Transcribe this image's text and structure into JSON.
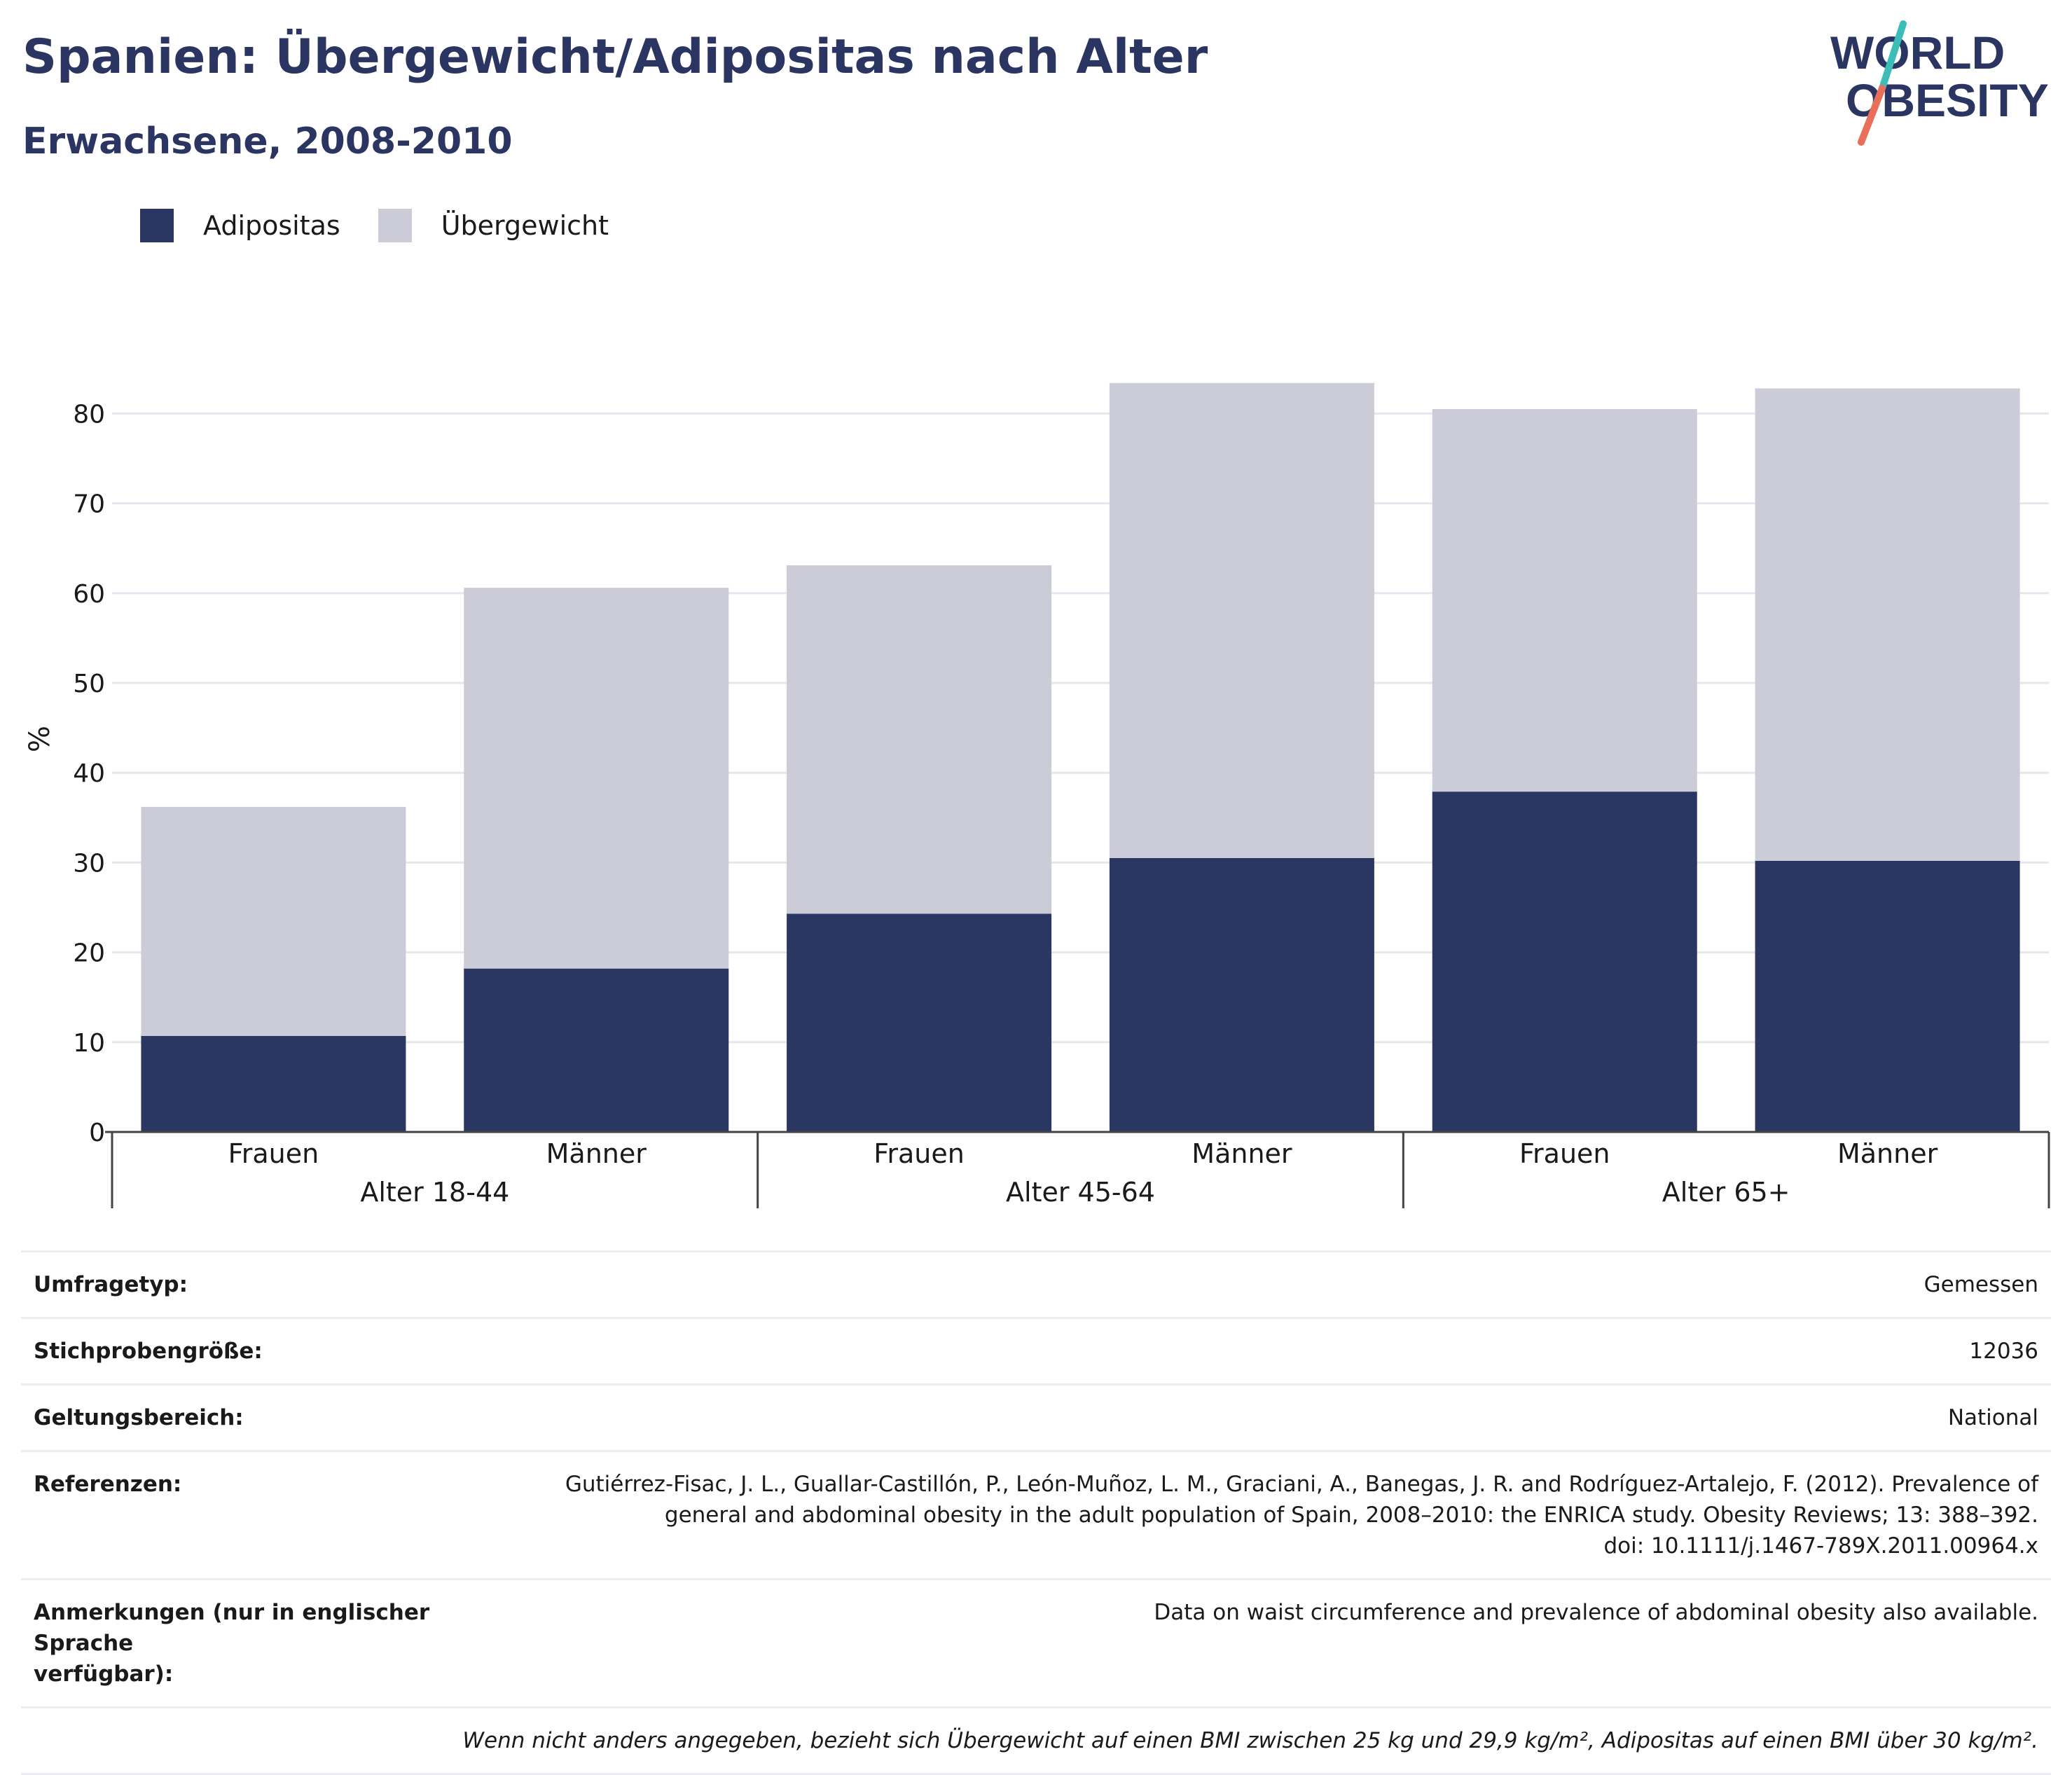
{
  "header": {
    "title": "Spanien: Übergewicht/Adipositas nach Alter",
    "subtitle": "Erwachsene, 2008-2010"
  },
  "logo": {
    "line1": "WORLD",
    "line2": "OBESITY"
  },
  "legend": {
    "obesity_label": "Adipositas",
    "overweight_label": "Übergewicht"
  },
  "colors": {
    "obesity": "#2b3763",
    "overweight": "#cbccd8",
    "title": "#2b3562",
    "logo_teal": "#3dbdb8",
    "logo_coral": "#e8705a"
  },
  "chart_data": {
    "type": "bar",
    "stacked": true,
    "ylabel": "%",
    "ylim": [
      0,
      80
    ],
    "yticks": [
      0,
      10,
      20,
      30,
      40,
      50,
      60,
      70,
      80
    ],
    "grid": true,
    "legend_position": "top-left",
    "categories": [
      "Frauen",
      "Männer",
      "Frauen",
      "Männer",
      "Frauen",
      "Männer"
    ],
    "groups": [
      {
        "label": "Alter 18-44",
        "categories": [
          0,
          1
        ]
      },
      {
        "label": "Alter 45-64",
        "categories": [
          2,
          3
        ]
      },
      {
        "label": "Alter 65+",
        "categories": [
          4,
          5
        ]
      }
    ],
    "series": [
      {
        "name": "Adipositas",
        "values": [
          10.7,
          18.2,
          24.3,
          30.5,
          37.9,
          30.2
        ]
      },
      {
        "name": "Übergewicht",
        "values": [
          25.5,
          42.4,
          38.8,
          52.9,
          42.6,
          52.6
        ]
      }
    ],
    "totals": [
      36.2,
      60.6,
      63.1,
      83.4,
      80.5,
      82.8
    ]
  },
  "meta": {
    "rows": [
      {
        "key": "Umfragetyp:",
        "value": "Gemessen"
      },
      {
        "key": "Stichprobengröße:",
        "value": "12036"
      },
      {
        "key": "Geltungsbereich:",
        "value": "National"
      },
      {
        "key": "Referenzen:",
        "value_lines": [
          "Gutiérrez-Fisac, J. L., Guallar-Castillón, P., León-Muñoz, L. M., Graciani, A., Banegas, J. R. and Rodríguez-Artalejo, F. (2012). Prevalence of",
          "general and abdominal obesity in the adult population of Spain, 2008–2010: the ENRICA study. Obesity Reviews; 13: 388–392.",
          "doi: 10.1111/j.1467-789X.2011.00964.x"
        ]
      },
      {
        "key_lines": [
          "Anmerkungen (nur in englischer Sprache",
          "verfügbar):"
        ],
        "value": "Data on waist circumference and prevalence of abdominal obesity also available."
      }
    ],
    "footnote": "Wenn nicht anders angegeben, bezieht sich Übergewicht auf einen BMI zwischen 25 kg und 29,9 kg/m², Adipositas auf einen BMI über 30 kg/m²."
  }
}
